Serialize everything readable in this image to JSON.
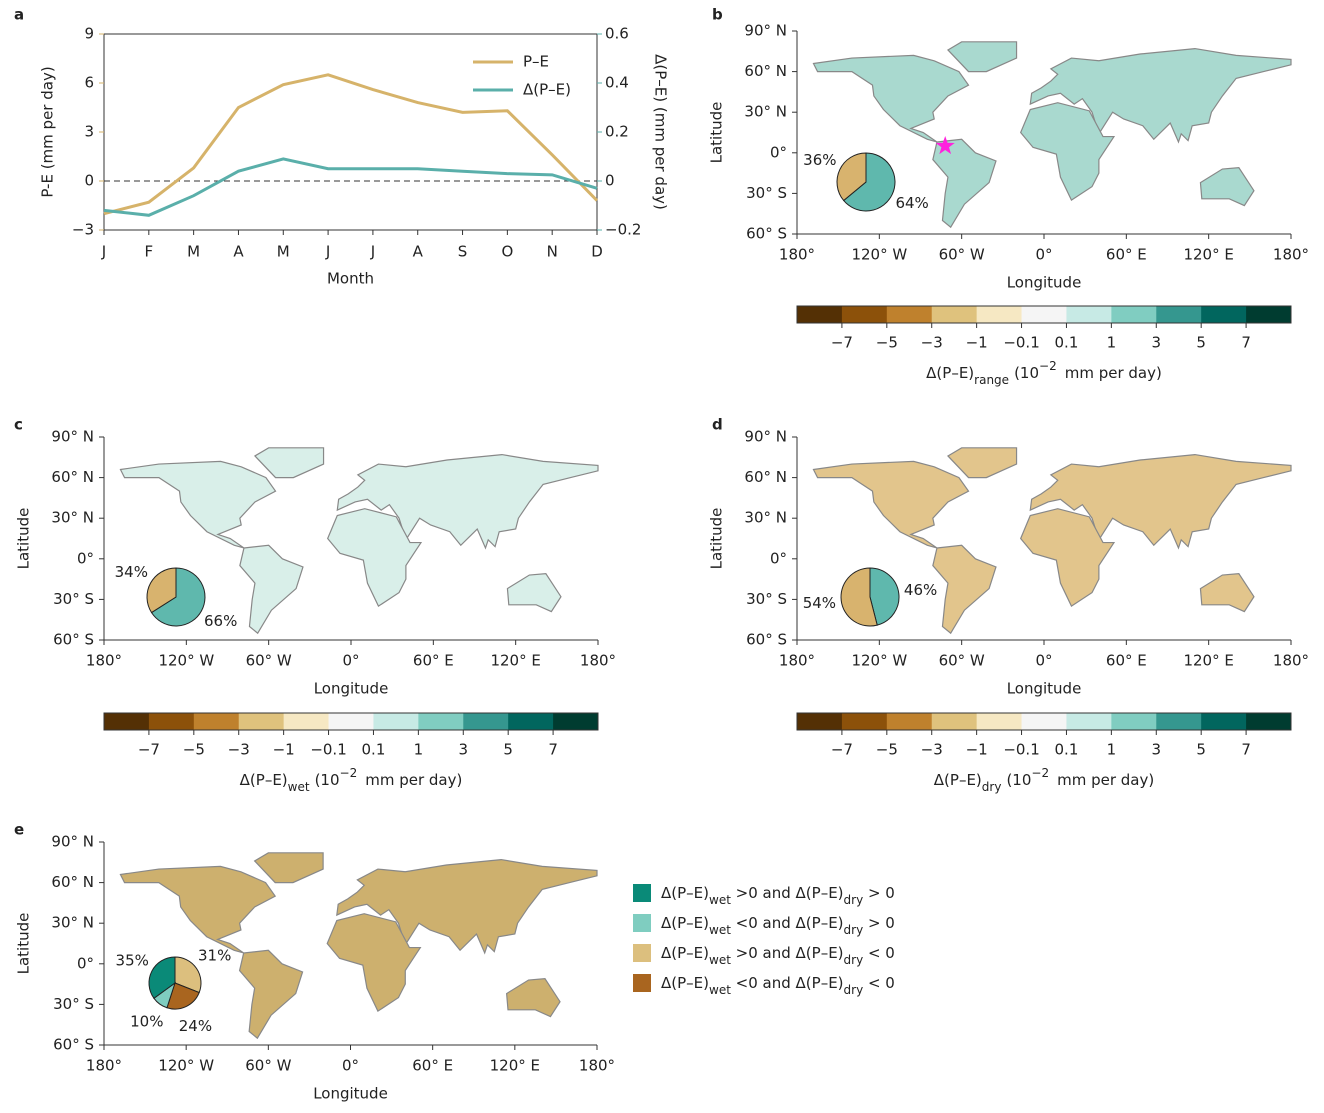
{
  "chart_data": [
    {
      "type": "line",
      "panel_label": "a",
      "xlabel": "Month",
      "ylabel": "P-E (mm per day)",
      "y2label": "Δ(P–E) (mm per day)",
      "categories": [
        "J",
        "F",
        "M",
        "A",
        "M",
        "J",
        "J",
        "A",
        "S",
        "O",
        "N",
        "D"
      ],
      "series": [
        {
          "name": "P–E",
          "color": "#d6b36a",
          "values": [
            -2.0,
            -1.3,
            0.8,
            4.5,
            5.9,
            6.5,
            5.6,
            4.8,
            4.2,
            4.3,
            1.6,
            -1.2
          ]
        },
        {
          "name": "Δ(P–E)",
          "color": "#5aafaa",
          "axis": "y2",
          "values": [
            -0.12,
            -0.14,
            -0.06,
            0.04,
            0.09,
            0.05,
            0.05,
            0.05,
            0.04,
            0.03,
            0.025,
            -0.03
          ]
        }
      ],
      "ylim": [
        -3,
        9
      ],
      "yticks": [
        {
          "value": -3,
          "label": "−3"
        },
        0,
        3,
        6,
        9
      ],
      "y2lim": [
        -0.2,
        0.6
      ],
      "y2ticks": [
        {
          "value": -0.2,
          "label": "−0.2"
        },
        0,
        0.2,
        0.4,
        0.6
      ],
      "legend": "upper right"
    },
    {
      "type": "map",
      "panel_label": "b",
      "xlabel": "Longitude",
      "ylabel": "Latitude",
      "xlim": [
        -180,
        180
      ],
      "ylim": [
        -60,
        90
      ],
      "xticks": [
        {
          "value": -180,
          "label": "180°"
        },
        {
          "value": -120,
          "label": "120° W"
        },
        {
          "value": -60,
          "label": "60° W"
        },
        {
          "value": 0,
          "label": "0°"
        },
        {
          "value": 60,
          "label": "60° E"
        },
        {
          "value": 120,
          "label": "120° E"
        },
        {
          "value": 180,
          "label": "180°"
        }
      ],
      "yticks": [
        {
          "value": 90,
          "label": "90° N"
        },
        {
          "value": 60,
          "label": "60° N"
        },
        {
          "value": 30,
          "label": "30° N"
        },
        {
          "value": 0,
          "label": "0°"
        },
        {
          "value": -30,
          "label": "30° S"
        },
        {
          "value": -60,
          "label": "60° S"
        }
      ],
      "pie": {
        "values": [
          64,
          36
        ],
        "value_labels": [
          "64%",
          "36%"
        ],
        "colors": [
          "#5fb8ad",
          "#d8b36e"
        ]
      },
      "marker": {
        "lon": -72,
        "lat": 5,
        "color": "#ff22dd"
      },
      "colorbar": {
        "colors": [
          "#543005",
          "#8c510a",
          "#bf812d",
          "#dfc27d",
          "#f6e8c3",
          "#f5f5f5",
          "#c7eae5",
          "#80cdc1",
          "#35978f",
          "#01665e",
          "#003c30"
        ],
        "ticks": [
          {
            "value": -7,
            "label": "−7"
          },
          {
            "value": -5,
            "label": "−5"
          },
          {
            "value": -3,
            "label": "−3"
          },
          {
            "value": -1,
            "label": "−1"
          },
          {
            "value": -0.1,
            "label": "−0.1"
          },
          0.1,
          1,
          3,
          5,
          7
        ],
        "title": {
          "main": "Δ(P–E)",
          "sub": "range",
          "unit": "(10",
          "exp": "−2",
          "tail": "mm per day)"
        }
      }
    },
    {
      "type": "map",
      "panel_label": "c",
      "xlabel": "Longitude",
      "ylabel": "Latitude",
      "xlim": [
        -180,
        180
      ],
      "ylim": [
        -60,
        90
      ],
      "xticks": [
        {
          "value": -180,
          "label": "180°"
        },
        {
          "value": -120,
          "label": "120° W"
        },
        {
          "value": -60,
          "label": "60° W"
        },
        {
          "value": 0,
          "label": "0°"
        },
        {
          "value": 60,
          "label": "60° E"
        },
        {
          "value": 120,
          "label": "120° E"
        },
        {
          "value": 180,
          "label": "180°"
        }
      ],
      "yticks": [
        {
          "value": 90,
          "label": "90° N"
        },
        {
          "value": 60,
          "label": "60° N"
        },
        {
          "value": 30,
          "label": "30° N"
        },
        {
          "value": 0,
          "label": "0°"
        },
        {
          "value": -30,
          "label": "30° S"
        },
        {
          "value": -60,
          "label": "60° S"
        }
      ],
      "pie": {
        "values": [
          66,
          34
        ],
        "value_labels": [
          "66%",
          "34%"
        ],
        "colors": [
          "#5fb8ad",
          "#d8b36e"
        ]
      },
      "colorbar": {
        "colors": [
          "#543005",
          "#8c510a",
          "#bf812d",
          "#dfc27d",
          "#f6e8c3",
          "#f5f5f5",
          "#c7eae5",
          "#80cdc1",
          "#35978f",
          "#01665e",
          "#003c30"
        ],
        "ticks": [
          {
            "value": -7,
            "label": "−7"
          },
          {
            "value": -5,
            "label": "−5"
          },
          {
            "value": -3,
            "label": "−3"
          },
          {
            "value": -1,
            "label": "−1"
          },
          {
            "value": -0.1,
            "label": "−0.1"
          },
          0.1,
          1,
          3,
          5,
          7
        ],
        "title": {
          "main": "Δ(P–E)",
          "sub": "wet",
          "unit": "(10",
          "exp": "−2",
          "tail": "mm per day)"
        }
      }
    },
    {
      "type": "map",
      "panel_label": "d",
      "xlabel": "Longitude",
      "ylabel": "Latitude",
      "xlim": [
        -180,
        180
      ],
      "ylim": [
        -60,
        90
      ],
      "xticks": [
        {
          "value": -180,
          "label": "180°"
        },
        {
          "value": -120,
          "label": "120° W"
        },
        {
          "value": -60,
          "label": "60° W"
        },
        {
          "value": 0,
          "label": "0°"
        },
        {
          "value": 60,
          "label": "60° E"
        },
        {
          "value": 120,
          "label": "120° E"
        },
        {
          "value": 180,
          "label": "180°"
        }
      ],
      "yticks": [
        {
          "value": 90,
          "label": "90° N"
        },
        {
          "value": 60,
          "label": "60° N"
        },
        {
          "value": 30,
          "label": "30° N"
        },
        {
          "value": 0,
          "label": "0°"
        },
        {
          "value": -30,
          "label": "30° S"
        },
        {
          "value": -60,
          "label": "60° S"
        }
      ],
      "pie": {
        "values": [
          46,
          54
        ],
        "value_labels": [
          "46%",
          "54%"
        ],
        "colors": [
          "#5fb8ad",
          "#d8b36e"
        ]
      },
      "colorbar": {
        "colors": [
          "#543005",
          "#8c510a",
          "#bf812d",
          "#dfc27d",
          "#f6e8c3",
          "#f5f5f5",
          "#c7eae5",
          "#80cdc1",
          "#35978f",
          "#01665e",
          "#003c30"
        ],
        "ticks": [
          {
            "value": -7,
            "label": "−7"
          },
          {
            "value": -5,
            "label": "−5"
          },
          {
            "value": -3,
            "label": "−3"
          },
          {
            "value": -1,
            "label": "−1"
          },
          {
            "value": -0.1,
            "label": "−0.1"
          },
          0.1,
          1,
          3,
          5,
          7
        ],
        "title": {
          "main": "Δ(P–E)",
          "sub": "dry",
          "unit": "(10",
          "exp": "−2",
          "tail": "mm per day)"
        }
      }
    },
    {
      "type": "map",
      "panel_label": "e",
      "xlabel": "Longitude",
      "ylabel": "Latitude",
      "xlim": [
        -180,
        180
      ],
      "ylim": [
        -60,
        90
      ],
      "xticks": [
        {
          "value": -180,
          "label": "180°"
        },
        {
          "value": -120,
          "label": "120° W"
        },
        {
          "value": -60,
          "label": "60° W"
        },
        {
          "value": 0,
          "label": "0°"
        },
        {
          "value": 60,
          "label": "60° E"
        },
        {
          "value": 120,
          "label": "120° E"
        },
        {
          "value": 180,
          "label": "180°"
        }
      ],
      "yticks": [
        {
          "value": 90,
          "label": "90° N"
        },
        {
          "value": 60,
          "label": "60° N"
        },
        {
          "value": 30,
          "label": "30° N"
        },
        {
          "value": 0,
          "label": "0°"
        },
        {
          "value": -30,
          "label": "30° S"
        },
        {
          "value": -60,
          "label": "60° S"
        }
      ],
      "pie": {
        "values": [
          31,
          24,
          10,
          35
        ],
        "value_labels": [
          "31%",
          "24%",
          "10%",
          "35%"
        ],
        "colors": [
          "#dcbf7e",
          "#a9651f",
          "#7fcdc0",
          "#0a8a78"
        ]
      },
      "legend": [
        {
          "color": "#0a8a78",
          "parts": [
            "Δ(P–E)",
            "wet",
            " >0 and Δ(P–E)",
            "dry",
            " > 0"
          ]
        },
        {
          "color": "#7fcdc0",
          "parts": [
            "Δ(P–E)",
            "wet",
            " <0 and Δ(P–E)",
            "dry",
            " > 0"
          ]
        },
        {
          "color": "#dcbf7e",
          "parts": [
            "Δ(P–E)",
            "wet",
            " >0 and Δ(P–E)",
            "dry",
            " < 0"
          ]
        },
        {
          "color": "#a9651f",
          "parts": [
            "Δ(P–E)",
            "wet",
            " <0 and Δ(P–E)",
            "dry",
            " < 0"
          ]
        }
      ]
    }
  ]
}
